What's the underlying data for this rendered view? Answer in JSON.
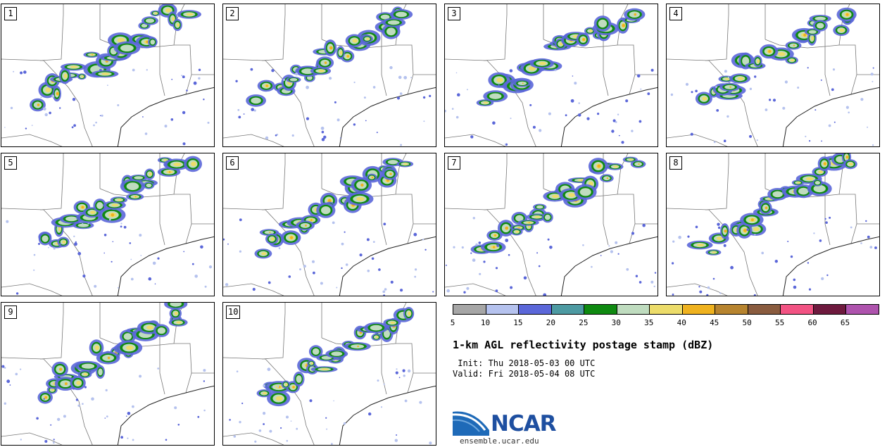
{
  "panels": [
    {
      "label": "1"
    },
    {
      "label": "2"
    },
    {
      "label": "3"
    },
    {
      "label": "4"
    },
    {
      "label": "5"
    },
    {
      "label": "6"
    },
    {
      "label": "7"
    },
    {
      "label": "8"
    },
    {
      "label": "9"
    },
    {
      "label": "10"
    }
  ],
  "colorbar": {
    "colors": [
      "#a6a6a6",
      "#b5c2ee",
      "#5b67d9",
      "#4d9aa2",
      "#0f8a11",
      "#bfdcbf",
      "#ecdc6a",
      "#efb21f",
      "#b7842f",
      "#8a5c3f",
      "#f25383",
      "#6e1a3e",
      "#ae53ad"
    ],
    "tick_labels": [
      "5",
      "10",
      "15",
      "20",
      "25",
      "30",
      "35",
      "40",
      "45",
      "50",
      "55",
      "60",
      "65"
    ]
  },
  "title": "1-km AGL reflectivity postage stamp (dBZ)",
  "init_line": " Init: Thu 2018-05-03 00 UTC",
  "valid_line": "Valid: Fri 2018-05-04 08 UTC",
  "logo_text": "NCAR",
  "site": "ensemble.ucar.edu"
}
